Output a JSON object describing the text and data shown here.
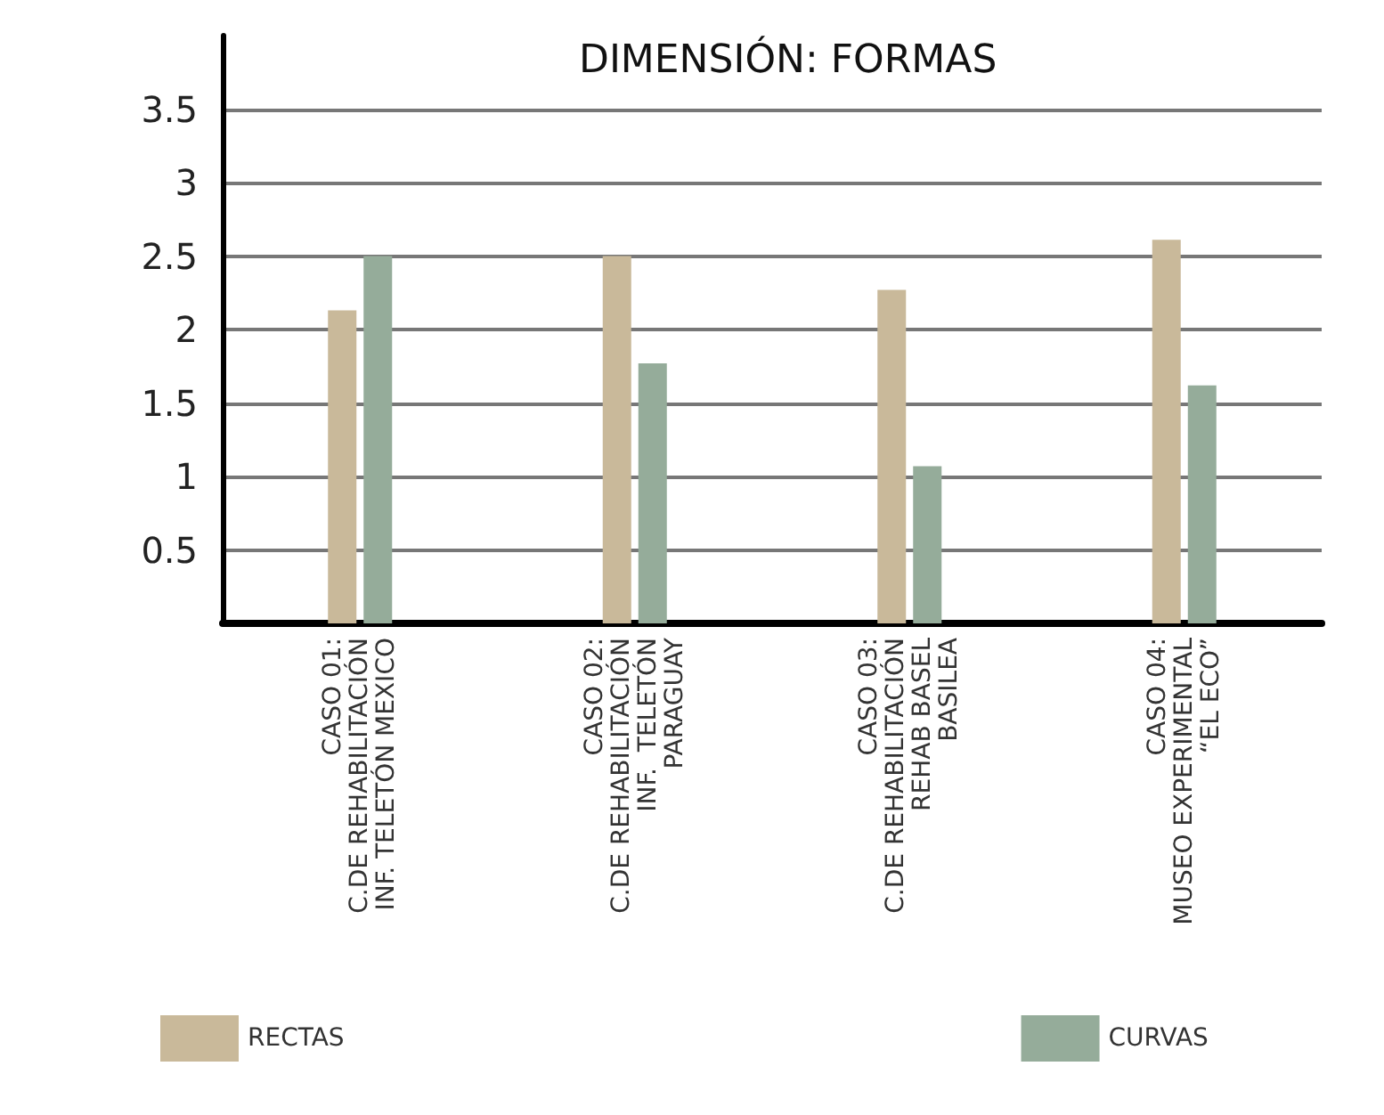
{
  "chart_data": {
    "type": "bar",
    "title": "DIMENSIÓN: FORMAS",
    "categories": [
      "CASO 01:\nC.DE REHABILITACIÓN\nINF. TELETÓN MEXICO",
      "CASO 02:\nC.DE REHABILITACIÓN\nINF.  TELETÓN\nPARAGUAY",
      "CASO 03:\nC.DE REHABILITACIÓN\nREHAB BASEL\nBASILEA",
      "CASO 04:\nMUSEO EXPERIMENTAL\n“EL ECO”"
    ],
    "series": [
      {
        "name": "RECTAS",
        "color": "#c9b99a",
        "values": [
          2.13,
          2.5,
          2.27,
          2.61
        ]
      },
      {
        "name": "CURVAS",
        "color": "#95ac9a",
        "values": [
          2.5,
          1.77,
          1.07,
          1.62
        ]
      }
    ],
    "ylim": [
      0,
      4
    ],
    "yticks": [
      {
        "value": 0,
        "label": null
      },
      0.5,
      1,
      1.5,
      2,
      2.5,
      3,
      3.5
    ],
    "grid": "y",
    "legend": "bottom"
  }
}
